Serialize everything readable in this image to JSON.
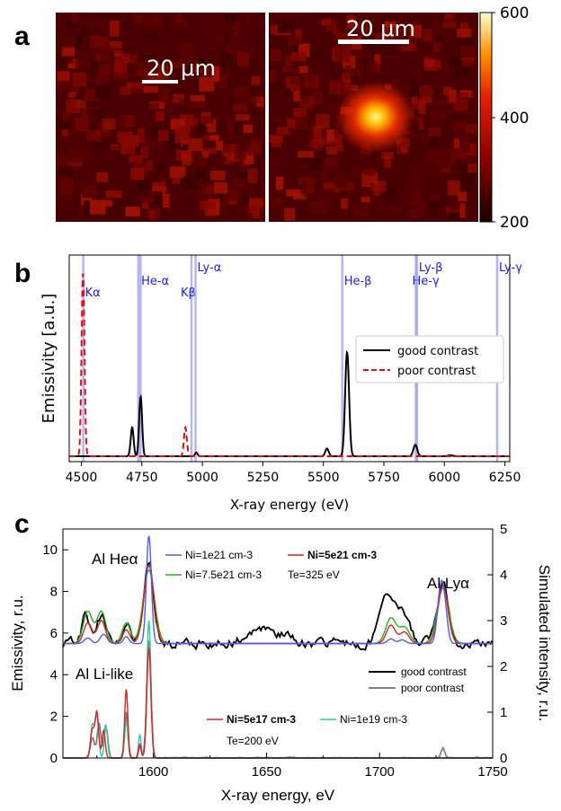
{
  "panel_labels": {
    "a": "a",
    "b": "b",
    "c": "c"
  },
  "panel_a": {
    "scale_left": "20 μm",
    "scale_right": "20 μm",
    "colorbar_ticks": [
      "600",
      "400",
      "200"
    ],
    "colorbar_range": [
      200,
      600
    ],
    "colors": {
      "low": "#4a0000",
      "mid": "#c81800",
      "high": "#ffff70"
    }
  },
  "chart_data": [
    {
      "type": "line",
      "title": "",
      "xlabel": "X-ray energy (eV)",
      "ylabel": "Emissivity [a.u.]",
      "xlim": [
        4450,
        6270
      ],
      "ylim": [
        0,
        1.0
      ],
      "xticks": [
        "4500",
        "4750",
        "5000",
        "5250",
        "5500",
        "5750",
        "6000",
        "6250"
      ],
      "xtick_values": [
        4500,
        4750,
        5000,
        5250,
        5500,
        5750,
        6000,
        6250
      ],
      "lines": [
        {
          "label": "Kα",
          "energy": 4508
        },
        {
          "label": "He-α",
          "energy": 4740
        },
        {
          "label": "Kβ",
          "energy": 4955
        },
        {
          "label": "Ly-α",
          "energy": 4972
        },
        {
          "label": "He-β",
          "energy": 5578
        },
        {
          "label": "He-γ",
          "energy": 5882
        },
        {
          "label": "Ly-β",
          "energy": 5887
        },
        {
          "label": "Ly-γ",
          "energy": 6218
        }
      ],
      "series": [
        {
          "name": "good contrast",
          "color": "#000000",
          "style": "solid",
          "peaks": [
            [
              4710,
              0.15,
              6
            ],
            [
              4745,
              0.31,
              6
            ],
            [
              4975,
              0.02,
              5
            ],
            [
              5515,
              0.04,
              7
            ],
            [
              5598,
              0.54,
              8
            ],
            [
              5880,
              0.06,
              8
            ],
            [
              6025,
              0.005,
              10
            ]
          ]
        },
        {
          "name": "poor contrast",
          "color": "#e01010",
          "style": "dashed",
          "peaks": [
            [
              4507,
              0.95,
              6
            ],
            [
              4930,
              0.15,
              6
            ]
          ]
        }
      ],
      "legend_position": "center-right"
    },
    {
      "type": "line",
      "title": "",
      "xlabel": "X-ray energy, eV",
      "ylabel": "Emissivity, r.u.",
      "ylabel_right": "Simulated intensity, r.u.",
      "xlim": [
        1560,
        1750
      ],
      "ylim": [
        0,
        11
      ],
      "ylim_right": [
        0,
        5
      ],
      "xticks": [
        "1600",
        "1650",
        "1700",
        "1750"
      ],
      "xtick_values": [
        1600,
        1650,
        1700,
        1750
      ],
      "yticks_left": [
        "0",
        "2",
        "4",
        "6",
        "8",
        "10"
      ],
      "ytick_values_left": [
        0,
        2,
        4,
        6,
        8,
        10
      ],
      "yticks_right": [
        "0",
        "1",
        "2",
        "3",
        "4",
        "5"
      ],
      "ytick_values_right": [
        0,
        1,
        2,
        3,
        4,
        5
      ],
      "annotations": {
        "he_alpha": "Al Heα",
        "ly_alpha": "Al Lyα",
        "li_like": "Al Li-like",
        "te_top": "Te=325 eV",
        "te_bottom": "Te=200 eV"
      },
      "series": [
        {
          "name": "Ni=1e21 cm-3",
          "color": "#4a60e8",
          "axis": "right",
          "group": "upper",
          "base": 2.5,
          "peaks": [
            [
              1571,
              0.12,
              1.5
            ],
            [
              1578,
              0.2,
              1.5
            ],
            [
              1588,
              0.15,
              1.2
            ],
            [
              1598,
              2.35,
              1.1
            ],
            [
              1705,
              0.1,
              1.5
            ],
            [
              1710,
              0.08,
              1.5
            ],
            [
              1727,
              1.2,
              1.4
            ],
            [
              1729,
              0.55,
              1.2
            ]
          ]
        },
        {
          "name": "Ni=5e21 cm-3",
          "color": "#e02020",
          "axis": "right",
          "group": "upper",
          "base": 2.5,
          "peaks": [
            [
              1571,
              0.45,
              1.8
            ],
            [
              1577,
              0.5,
              1.8
            ],
            [
              1588,
              0.3,
              1.6
            ],
            [
              1598,
              1.7,
              2.2
            ],
            [
              1705,
              0.4,
              2.0
            ],
            [
              1711,
              0.25,
              2.0
            ],
            [
              1728,
              1.25,
              2.2
            ]
          ]
        },
        {
          "name": "Ni=7.5e21 cm-3",
          "color": "#20b020",
          "axis": "right",
          "group": "upper",
          "base": 2.5,
          "peaks": [
            [
              1571,
              0.7,
              2.0
            ],
            [
              1577,
              0.7,
              2.0
            ],
            [
              1588,
              0.45,
              1.8
            ],
            [
              1598,
              1.6,
              2.5
            ],
            [
              1705,
              0.55,
              2.3
            ],
            [
              1711,
              0.35,
              2.3
            ],
            [
              1728,
              1.2,
              2.6
            ]
          ]
        },
        {
          "name": "Ni=5e17 cm-3",
          "color": "#e02020",
          "axis": "right",
          "group": "lower",
          "base": 0,
          "peaks": [
            [
              1573,
              0.6,
              0.8
            ],
            [
              1575,
              1.0,
              0.8
            ],
            [
              1578,
              0.6,
              0.7
            ],
            [
              1588,
              1.5,
              0.7
            ],
            [
              1594,
              0.3,
              0.6
            ],
            [
              1598,
              2.4,
              0.9
            ]
          ]
        },
        {
          "name": "Ni=1e19 cm-3",
          "color": "#30c8a8",
          "axis": "right",
          "group": "lower",
          "base": 0,
          "peaks": [
            [
              1573,
              0.7,
              0.8
            ],
            [
              1575,
              0.9,
              0.8
            ],
            [
              1579,
              0.7,
              0.7
            ],
            [
              1588,
              0.8,
              0.7
            ],
            [
              1594,
              0.5,
              0.6
            ],
            [
              1598,
              3.0,
              0.9
            ]
          ]
        },
        {
          "name": "good contrast",
          "color": "#000000",
          "axis": "left",
          "group": "upper",
          "base": 5.5,
          "note": "experimental, noisy",
          "peaks": [
            [
              1570,
              1.4,
              1.6
            ],
            [
              1577,
              1.3,
              2.0
            ],
            [
              1588,
              0.9,
              1.5
            ],
            [
              1598,
              3.8,
              2.2
            ],
            [
              1650,
              0.6,
              8.0
            ],
            [
              1703,
              2.4,
              3.0
            ],
            [
              1710,
              1.6,
              3.0
            ],
            [
              1728,
              2.8,
              2.6
            ]
          ],
          "noise": 0.45
        },
        {
          "name": "poor contrast",
          "color": "#808080",
          "axis": "left",
          "group": "lower",
          "base": 0,
          "note": "experimental",
          "peaks": [
            [
              1573,
              1.0,
              0.9
            ],
            [
              1576,
              1.7,
              0.8
            ],
            [
              1579,
              1.6,
              0.8
            ],
            [
              1588,
              2.2,
              0.7
            ],
            [
              1594,
              0.6,
              0.6
            ],
            [
              1598,
              5.8,
              0.9
            ],
            [
              1728,
              0.5,
              0.8
            ]
          ],
          "noise": 0.06
        }
      ],
      "legend_experimental": [
        "good contrast",
        "poor contrast"
      ]
    }
  ]
}
